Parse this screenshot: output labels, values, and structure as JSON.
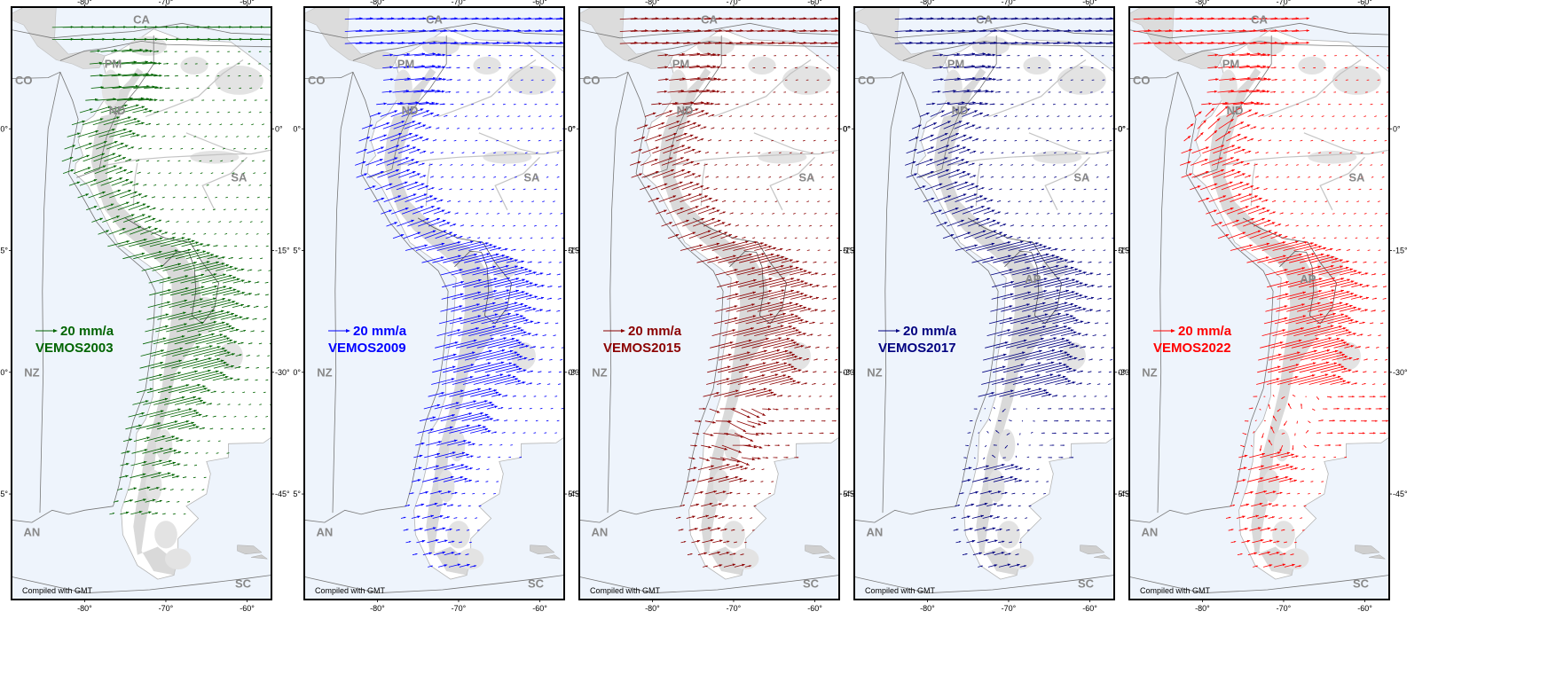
{
  "map": {
    "lon_ticks": [
      -80,
      -70,
      -60
    ],
    "lat_ticks": [
      0,
      -15,
      -30,
      -45
    ],
    "lon_labels": [
      "-80°",
      "-70°",
      "-60°"
    ],
    "lat_labels": [
      "0°",
      "-15°",
      "-30°",
      "-45°"
    ],
    "lon_range": [
      -89,
      -57
    ],
    "lat_range": [
      15,
      -58
    ],
    "credit": "Compiled with GMT",
    "regions": {
      "CA": "CA",
      "PM": "PM",
      "CO": "CO",
      "ND": "ND",
      "SA": "SA",
      "AP": "AP",
      "NZ": "NZ",
      "AN": "AN",
      "SC": "SC"
    },
    "colors": {
      "ocean": "#eef4fc",
      "land": "#ffffff",
      "andes": "#cccccc",
      "frame": "#000000"
    }
  },
  "panels": [
    {
      "model": "VEMOS2003",
      "scale_label": "20 mm/a",
      "color": "#006400",
      "show_ap": false
    },
    {
      "model": "VEMOS2009",
      "scale_label": "20 mm/a",
      "color": "#0000ff",
      "show_ap": false
    },
    {
      "model": "VEMOS2015",
      "scale_label": "20 mm/a",
      "color": "#8b0000",
      "show_ap": false
    },
    {
      "model": "VEMOS2017",
      "scale_label": "20 mm/a",
      "color": "#000080",
      "show_ap": true
    },
    {
      "model": "VEMOS2022",
      "scale_label": "20 mm/a",
      "color": "#ff0000",
      "show_ap": true
    }
  ]
}
